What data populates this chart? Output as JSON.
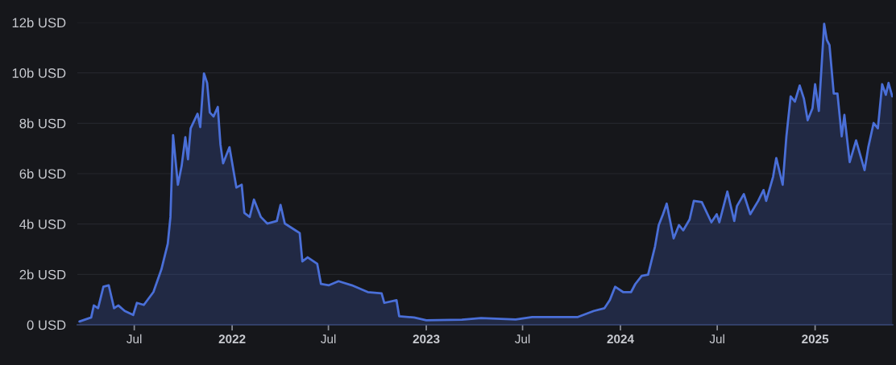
{
  "chart_data": {
    "type": "area",
    "x": [
      "2021-03-20",
      "2021-04-11",
      "2021-04-16",
      "2021-04-24",
      "2021-05-04",
      "2021-05-14",
      "2021-05-24",
      "2021-06-01",
      "2021-06-13",
      "2021-06-29",
      "2021-07-06",
      "2021-07-19",
      "2021-08-06",
      "2021-08-21",
      "2021-09-02",
      "2021-09-07",
      "2021-09-12",
      "2021-09-21",
      "2021-09-28",
      "2021-10-05",
      "2021-10-10",
      "2021-10-15",
      "2021-10-28",
      "2021-11-02",
      "2021-11-09",
      "2021-11-15",
      "2021-11-20",
      "2021-11-27",
      "2021-12-05",
      "2021-12-10",
      "2021-12-15",
      "2021-12-27",
      "2022-01-09",
      "2022-01-19",
      "2022-01-24",
      "2022-02-03",
      "2022-02-11",
      "2022-02-24",
      "2022-03-08",
      "2022-03-26",
      "2022-04-02",
      "2022-04-10",
      "2022-04-30",
      "2022-05-08",
      "2022-05-13",
      "2022-05-23",
      "2022-06-10",
      "2022-06-17",
      "2022-07-02",
      "2022-07-20",
      "2022-08-14",
      "2022-09-13",
      "2022-10-09",
      "2022-10-14",
      "2022-11-06",
      "2022-11-11",
      "2022-12-09",
      "2023-01-01",
      "2023-03-09",
      "2023-04-14",
      "2023-06-18",
      "2023-07-19",
      "2023-10-13",
      "2023-11-12",
      "2023-12-02",
      "2023-12-12",
      "2023-12-22",
      "2024-01-06",
      "2024-01-21",
      "2024-01-29",
      "2024-02-10",
      "2024-02-22",
      "2024-03-06",
      "2024-03-13",
      "2024-03-21",
      "2024-03-28",
      "2024-04-10",
      "2024-04-20",
      "2024-04-28",
      "2024-05-10",
      "2024-05-18",
      "2024-06-02",
      "2024-06-20",
      "2024-06-30",
      "2024-07-05",
      "2024-07-20",
      "2024-08-02",
      "2024-08-07",
      "2024-08-20",
      "2024-09-01",
      "2024-09-16",
      "2024-09-26",
      "2024-10-01",
      "2024-10-14",
      "2024-10-20",
      "2024-11-01",
      "2024-11-08",
      "2024-11-16",
      "2024-11-24",
      "2024-12-03",
      "2024-12-11",
      "2024-12-18",
      "2024-12-27",
      "2025-01-01",
      "2025-01-08",
      "2025-01-18",
      "2025-01-23",
      "2025-01-28",
      "2025-02-05",
      "2025-02-12",
      "2025-02-20",
      "2025-02-25",
      "2025-03-07",
      "2025-03-19",
      "2025-04-04",
      "2025-04-11",
      "2025-04-21",
      "2025-04-29",
      "2025-05-07",
      "2025-05-14",
      "2025-05-19",
      "2025-05-26"
    ],
    "series": [
      {
        "color": "#4a6fd8",
        "values": [
          0.13,
          0.29,
          0.77,
          0.66,
          1.51,
          1.57,
          0.66,
          0.77,
          0.55,
          0.39,
          0.87,
          0.79,
          1.3,
          2.2,
          3.22,
          4.28,
          7.53,
          5.56,
          6.3,
          7.45,
          6.57,
          7.8,
          8.38,
          7.85,
          9.98,
          9.6,
          8.43,
          8.27,
          8.65,
          7.16,
          6.41,
          7.05,
          5.45,
          5.56,
          4.44,
          4.28,
          4.97,
          4.28,
          4.02,
          4.12,
          4.76,
          4.02,
          3.75,
          3.64,
          2.52,
          2.68,
          2.42,
          1.62,
          1.57,
          1.73,
          1.57,
          1.3,
          1.25,
          0.87,
          0.98,
          0.34,
          0.29,
          0.18,
          0.2,
          0.27,
          0.21,
          0.31,
          0.31,
          0.55,
          0.66,
          0.98,
          1.51,
          1.3,
          1.3,
          1.62,
          1.94,
          1.99,
          3.11,
          3.96,
          4.39,
          4.81,
          3.43,
          3.96,
          3.75,
          4.18,
          4.92,
          4.87,
          4.07,
          4.39,
          4.07,
          5.29,
          4.12,
          4.71,
          5.19,
          4.39,
          4.92,
          5.35,
          4.92,
          5.88,
          6.62,
          5.56,
          7.48,
          9.07,
          8.86,
          9.5,
          8.97,
          8.12,
          8.59,
          9.55,
          8.49,
          11.95,
          11.31,
          11.1,
          9.18,
          9.18,
          7.48,
          8.33,
          6.46,
          7.32,
          6.14,
          7.05,
          8.01,
          7.8,
          9.55,
          9.13,
          9.6,
          9.07
        ]
      }
    ],
    "xlim": [
      "2021-03-16",
      "2025-05-27"
    ],
    "xticks": [
      {
        "value": "2021-07-01",
        "label": "Jul"
      },
      {
        "value": "2022-01-01",
        "label": "2022"
      },
      {
        "value": "2022-07-01",
        "label": "Jul"
      },
      {
        "value": "2023-01-01",
        "label": "2023"
      },
      {
        "value": "2023-07-01",
        "label": "Jul"
      },
      {
        "value": "2024-01-01",
        "label": "2024"
      },
      {
        "value": "2024-07-01",
        "label": "Jul"
      },
      {
        "value": "2025-01-01",
        "label": "2025"
      }
    ],
    "ylim": [
      0,
      12
    ],
    "yticks": [
      {
        "value": 0,
        "label": "0 USD"
      },
      {
        "value": 2,
        "label": "2b USD"
      },
      {
        "value": 4,
        "label": "4b USD"
      },
      {
        "value": 6,
        "label": "6b USD"
      },
      {
        "value": 8,
        "label": "8b USD"
      },
      {
        "value": 10,
        "label": "10b USD"
      },
      {
        "value": 12,
        "label": "12b USD"
      }
    ],
    "grid": "y"
  }
}
